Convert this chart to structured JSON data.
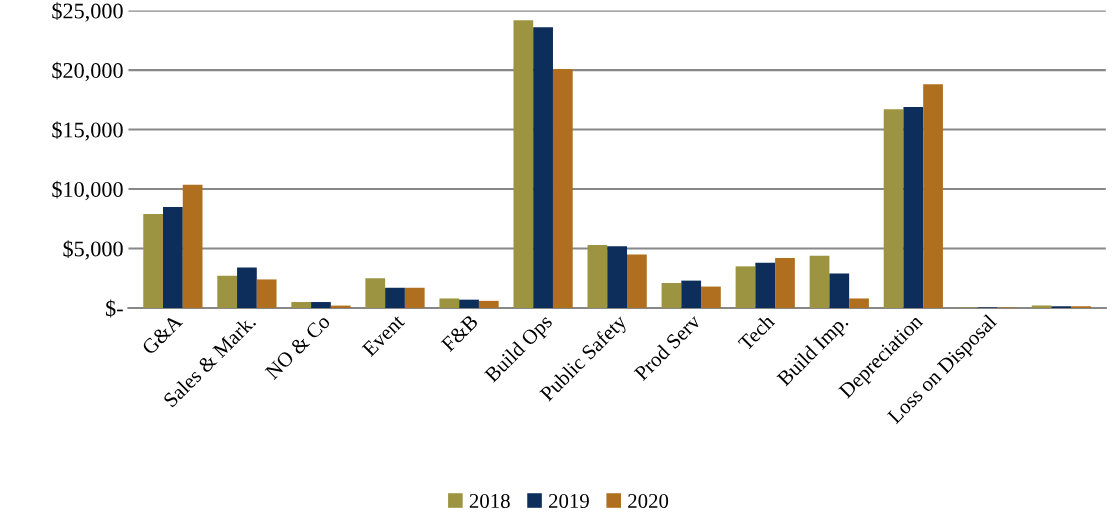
{
  "chart_data": {
    "type": "bar",
    "categories": [
      "G&A",
      "Sales & Mark.",
      "NO & Co",
      "Event",
      "F&B",
      "Build Ops",
      "Public Safety",
      "Prod Serv",
      "Tech",
      "Build Imp.",
      "Depreciation",
      "Loss on Disposal",
      null
    ],
    "series": [
      {
        "name": "2018",
        "color": "#9c9440",
        "values": [
          7900,
          2700,
          500,
          2500,
          800,
          24200,
          5300,
          2100,
          3500,
          4400,
          16700,
          50,
          200
        ]
      },
      {
        "name": "2019",
        "color": "#0d2d5a",
        "values": [
          8500,
          3400,
          500,
          1700,
          700,
          23600,
          5200,
          2300,
          3800,
          2900,
          16900,
          50,
          150
        ]
      },
      {
        "name": "2020",
        "color": "#b06e1f",
        "values": [
          10350,
          2400,
          200,
          1700,
          600,
          20100,
          4500,
          1800,
          4200,
          800,
          18800,
          50,
          150
        ]
      }
    ],
    "ylim": [
      0,
      25000
    ],
    "yticks": [
      {
        "value": 0,
        "label": "$-"
      },
      {
        "value": 5000,
        "label": "$5,000"
      },
      {
        "value": 10000,
        "label": "$10,000"
      },
      {
        "value": 15000,
        "label": "$15,000"
      },
      {
        "value": 20000,
        "label": "$20,000"
      },
      {
        "value": 25000,
        "label": "$25,000"
      }
    ],
    "grid": "y",
    "legend": "bottom"
  }
}
